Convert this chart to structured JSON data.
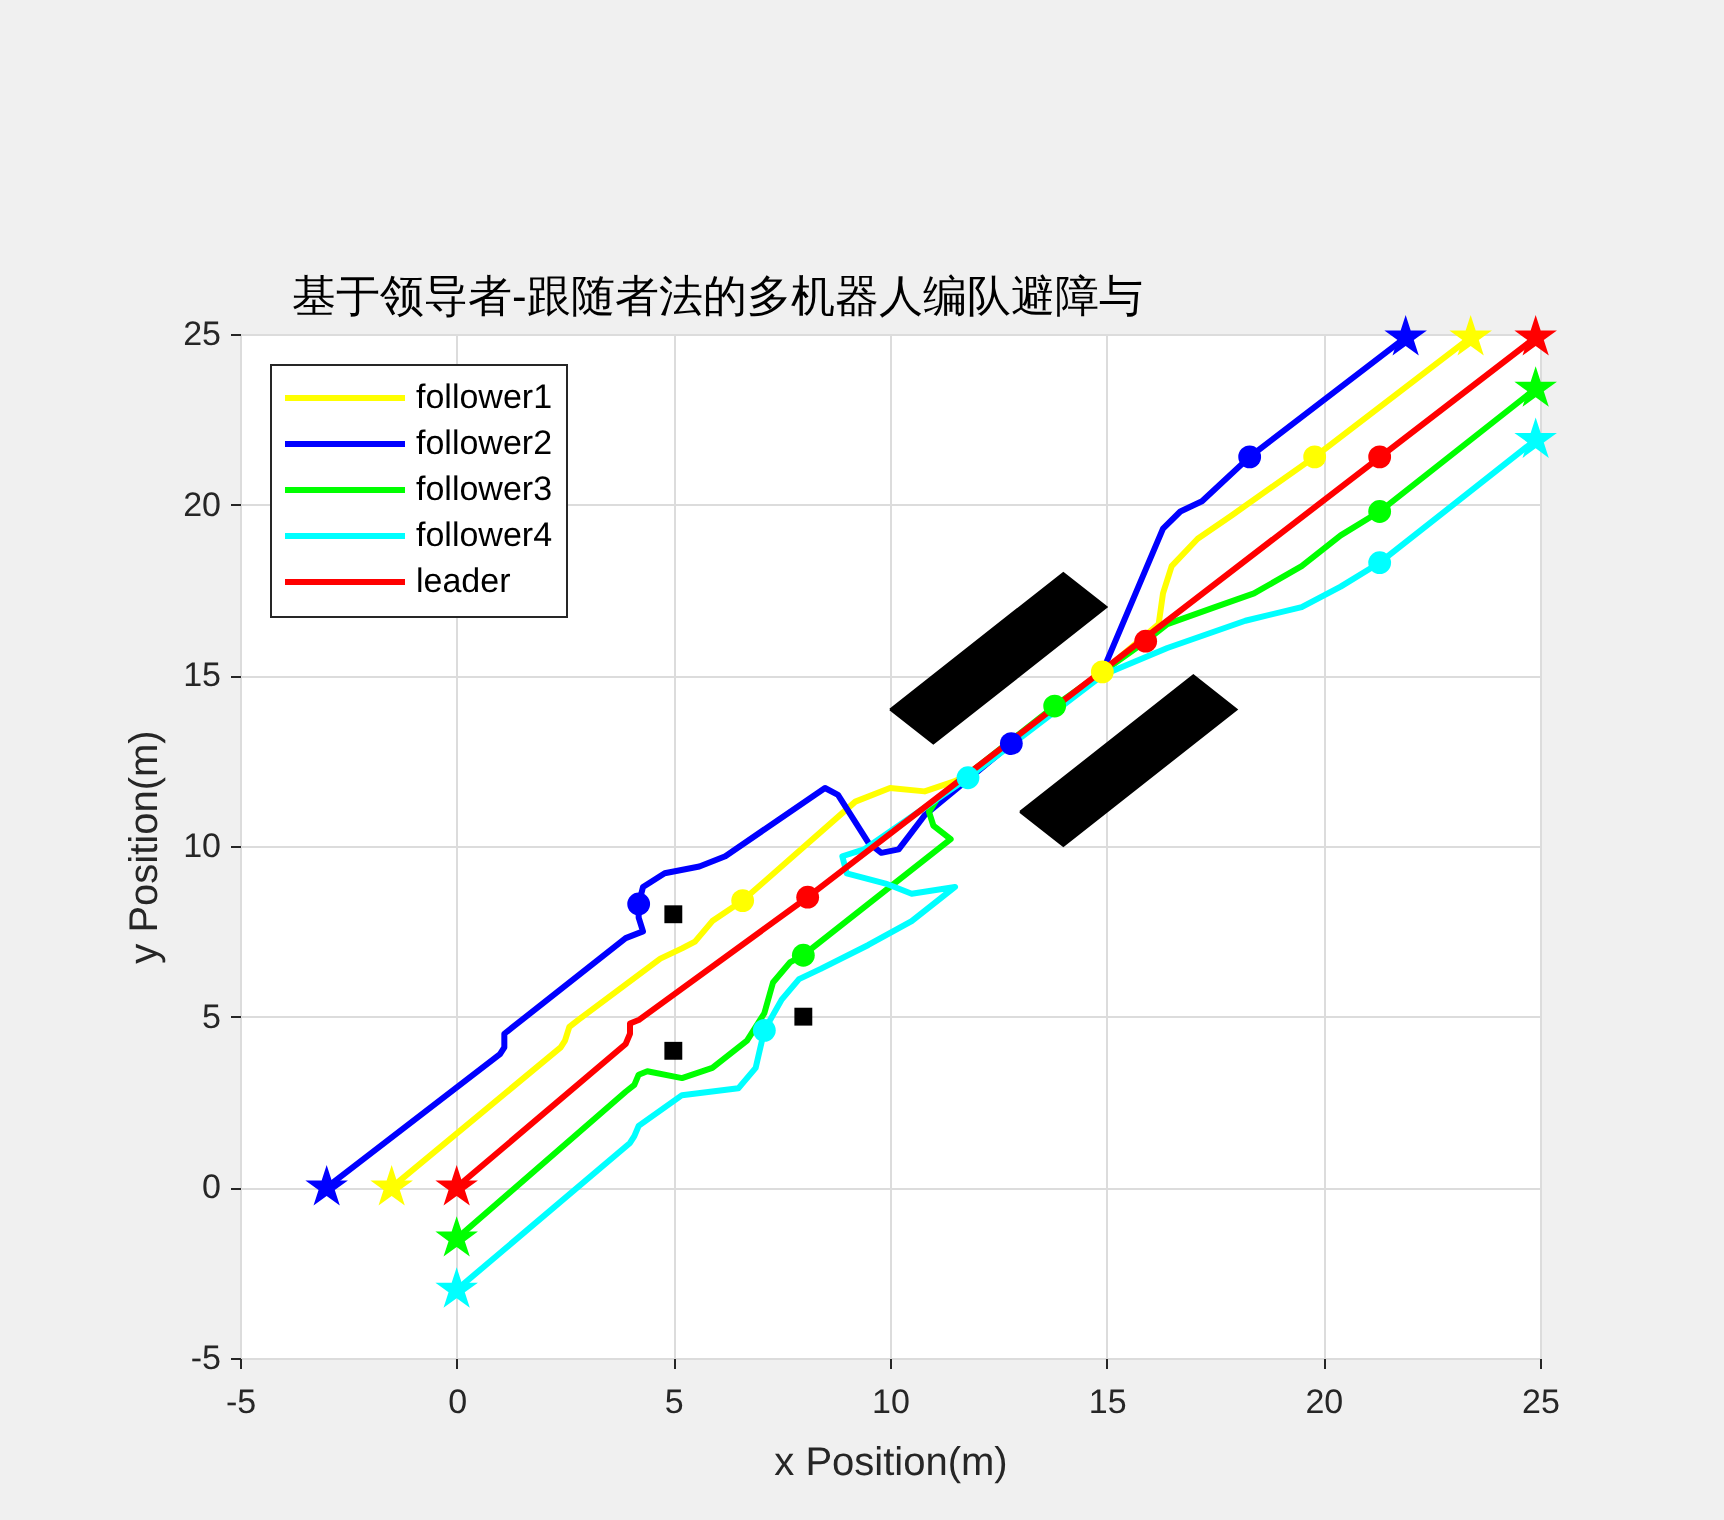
{
  "chart_data": {
    "type": "line",
    "title": "基于领导者-跟随者法的多机器人编队避障与",
    "xlabel": "x Position(m)",
    "ylabel": "y Position(m)",
    "xlim": [
      -5,
      25
    ],
    "ylim": [
      -5,
      25
    ],
    "xticks": [
      -5,
      0,
      5,
      10,
      15,
      20,
      25
    ],
    "yticks": [
      -5,
      0,
      5,
      10,
      15,
      20,
      25
    ],
    "grid": true,
    "legend": "top left",
    "line_style": "solid",
    "series": [
      {
        "name": "follower1",
        "color": "#ffff00",
        "x": [
          -1.5,
          2.4,
          2.5,
          2.6,
          2.8,
          4.7,
          5.2,
          5.5,
          5.9,
          6.6,
          9.2,
          10.0,
          10.8,
          11.5,
          11.8,
          14.9,
          16.2,
          16.3,
          16.5,
          17.1,
          17.9,
          19.8,
          23.4
        ],
        "values": [
          0,
          4.1,
          4.3,
          4.7,
          4.9,
          6.7,
          7.0,
          7.2,
          7.8,
          8.4,
          11.3,
          11.7,
          11.6,
          11.9,
          12.1,
          15.1,
          16.5,
          17.4,
          18.2,
          19.0,
          19.7,
          21.4,
          24.9
        ]
      },
      {
        "name": "follower2",
        "color": "#0000ff",
        "x": [
          -3,
          1.0,
          1.1,
          1.1,
          1.3,
          3.9,
          4.3,
          4.2,
          4.2,
          4.3,
          4.8,
          5.6,
          6.2,
          8.5,
          8.8,
          9.2,
          9.5,
          9.8,
          10.2,
          10.5,
          10.8,
          12.8,
          14.9,
          16.3,
          16.7,
          17.2,
          18.3,
          21.9
        ],
        "values": [
          0,
          3.9,
          4.1,
          4.5,
          4.7,
          7.3,
          7.5,
          7.9,
          8.3,
          8.8,
          9.2,
          9.4,
          9.7,
          11.7,
          11.5,
          10.7,
          10.1,
          9.8,
          9.9,
          10.4,
          10.9,
          13.0,
          15.1,
          19.3,
          19.8,
          20.1,
          21.4,
          24.9
        ]
      },
      {
        "name": "follower3",
        "color": "#00ff00",
        "x": [
          0,
          3.9,
          4.1,
          4.2,
          4.4,
          5.2,
          5.9,
          6.7,
          7.1,
          7.3,
          7.7,
          8.0,
          11.4,
          11.0,
          10.9,
          11.1,
          13.8,
          15.9,
          16.4,
          17.5,
          18.4,
          19.5,
          20.4,
          21.3,
          24.9
        ],
        "values": [
          -1.5,
          2.8,
          3.0,
          3.3,
          3.4,
          3.2,
          3.5,
          4.3,
          5.1,
          6.0,
          6.6,
          6.8,
          10.2,
          10.6,
          11.0,
          11.4,
          14.1,
          16.0,
          16.5,
          17.0,
          17.4,
          18.2,
          19.1,
          19.8,
          23.4
        ]
      },
      {
        "name": "follower4",
        "color": "#00ffff",
        "x": [
          0,
          4.0,
          4.1,
          4.2,
          5.2,
          6.5,
          6.9,
          7.1,
          7.5,
          7.9,
          8.4,
          9.5,
          10.5,
          11.1,
          11.5,
          10.5,
          9.9,
          9.0,
          8.9,
          9.4,
          11.8,
          14.9,
          16.4,
          18.2,
          19.5,
          20.4,
          21.3,
          24.9
        ],
        "values": [
          -3,
          1.3,
          1.5,
          1.8,
          2.7,
          2.9,
          3.5,
          4.6,
          5.5,
          6.1,
          6.4,
          7.1,
          7.8,
          8.4,
          8.8,
          8.6,
          8.9,
          9.2,
          9.7,
          9.9,
          12.0,
          15.0,
          15.8,
          16.6,
          17.0,
          17.6,
          18.3,
          21.9
        ]
      },
      {
        "name": "leader",
        "color": "#ff0000",
        "x": [
          0,
          3.9,
          4.0,
          4.0,
          4.2,
          8.1,
          24.9
        ],
        "values": [
          0,
          4.2,
          4.5,
          4.8,
          4.9,
          8.5,
          24.9
        ]
      },
      {
        "type": "area",
        "color": "#000000",
        "x": [
          10,
          11,
          15,
          14,
          10
        ],
        "values": [
          14,
          13,
          17,
          18,
          14
        ]
      },
      {
        "type": "area",
        "color": "#000000",
        "x": [
          13,
          14,
          18,
          17,
          13
        ],
        "values": [
          11,
          10,
          14,
          15,
          11
        ]
      },
      {
        "type": "scatter",
        "marker": "square",
        "color": "#000000",
        "x": [
          5,
          5,
          8
        ],
        "values": [
          8,
          4,
          5
        ]
      },
      {
        "type": "scatter",
        "marker": "circle",
        "color": "#ffff00",
        "x": [
          6.6,
          14.9,
          19.8
        ],
        "values": [
          8.4,
          15.1,
          21.4
        ]
      },
      {
        "type": "scatter",
        "marker": "circle",
        "color": "#0000ff",
        "x": [
          4.2,
          12.8,
          18.3
        ],
        "values": [
          8.3,
          13.0,
          21.4
        ]
      },
      {
        "type": "scatter",
        "marker": "circle",
        "color": "#00ff00",
        "x": [
          8.0,
          13.8,
          21.3
        ],
        "values": [
          6.8,
          14.1,
          19.8
        ]
      },
      {
        "type": "scatter",
        "marker": "circle",
        "color": "#00ffff",
        "x": [
          7.1,
          11.8,
          21.3
        ],
        "values": [
          4.6,
          12.0,
          18.3
        ]
      },
      {
        "type": "scatter",
        "marker": "circle",
        "color": "#ff0000",
        "x": [
          8.1,
          15.9,
          21.3
        ],
        "values": [
          8.5,
          16.0,
          21.4
        ]
      },
      {
        "type": "scatter",
        "marker": "star",
        "color": "#ffff00",
        "x": [
          -1.5,
          23.4
        ],
        "values": [
          0,
          24.9
        ]
      },
      {
        "type": "scatter",
        "marker": "star",
        "color": "#0000ff",
        "x": [
          -3,
          21.9
        ],
        "values": [
          0,
          24.9
        ]
      },
      {
        "type": "scatter",
        "marker": "star",
        "color": "#00ff00",
        "x": [
          0,
          24.9
        ],
        "values": [
          -1.5,
          23.4
        ]
      },
      {
        "type": "scatter",
        "marker": "star",
        "color": "#00ffff",
        "x": [
          0,
          24.9
        ],
        "values": [
          -3,
          21.9
        ]
      },
      {
        "type": "scatter",
        "marker": "star",
        "color": "#ff0000",
        "x": [
          0,
          24.9
        ],
        "values": [
          0,
          24.9
        ]
      }
    ]
  }
}
